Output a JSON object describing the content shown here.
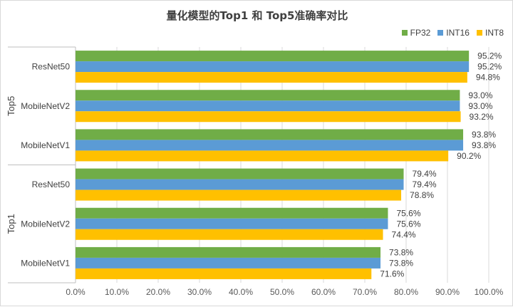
{
  "chart_data": {
    "type": "bar",
    "orientation": "horizontal",
    "title": "量化模型的Top1 和 Top5准确率对比",
    "groups": [
      {
        "name": "Top5",
        "categories": [
          "ResNet50",
          "MobileNetV2",
          "MobileNetV1"
        ]
      },
      {
        "name": "Top1",
        "categories": [
          "ResNet50",
          "MobileNetV2",
          "MobileNetV1"
        ]
      }
    ],
    "series": [
      {
        "name": "FP32",
        "color": "#70ad47",
        "values": [
          [
            95.2,
            93.0,
            93.8
          ],
          [
            79.4,
            75.6,
            73.8
          ]
        ]
      },
      {
        "name": "INT16",
        "color": "#5b9bd5",
        "values": [
          [
            95.2,
            93.0,
            93.8
          ],
          [
            79.4,
            75.6,
            73.8
          ]
        ]
      },
      {
        "name": "INT8",
        "color": "#ffc000",
        "values": [
          [
            94.8,
            93.2,
            90.2
          ],
          [
            78.8,
            74.4,
            71.6
          ]
        ]
      }
    ],
    "data_labels": [
      [
        [
          "95.2%",
          "93.0%",
          "93.8%"
        ],
        [
          "79.4%",
          "75.6%",
          "73.8%"
        ]
      ],
      [
        [
          "95.2%",
          "93.0%",
          "93.8%"
        ],
        [
          "79.4%",
          "75.6%",
          "73.8%"
        ]
      ],
      [
        [
          "94.8%",
          "93.2%",
          "90.2%"
        ],
        [
          "78.8%",
          "74.4%",
          "71.6%"
        ]
      ]
    ],
    "xlim": [
      0,
      100
    ],
    "xticks": [
      "0.0%",
      "10.0%",
      "20.0%",
      "30.0%",
      "40.0%",
      "50.0%",
      "60.0%",
      "70.0%",
      "80.0%",
      "90.0%",
      "100.0%"
    ],
    "grid": true,
    "legend_position": "top-right"
  }
}
